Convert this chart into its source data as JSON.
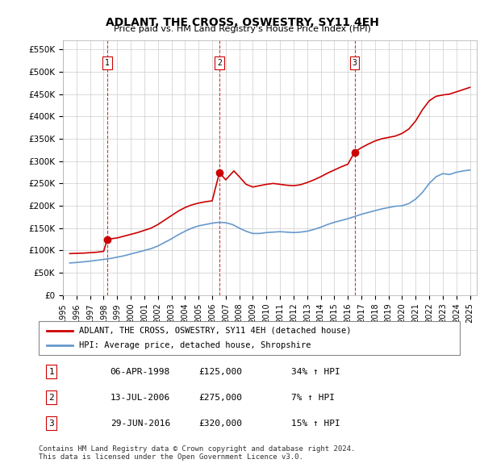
{
  "title": "ADLANT, THE CROSS, OSWESTRY, SY11 4EH",
  "subtitle": "Price paid vs. HM Land Registry's House Price Index (HPI)",
  "ylabel_ticks": [
    "£0",
    "£50K",
    "£100K",
    "£150K",
    "£200K",
    "£250K",
    "£300K",
    "£350K",
    "£400K",
    "£450K",
    "£500K",
    "£550K"
  ],
  "ytick_values": [
    0,
    50000,
    100000,
    150000,
    200000,
    250000,
    300000,
    350000,
    400000,
    450000,
    500000,
    550000
  ],
  "ylim": [
    0,
    570000
  ],
  "xlim_start": 1995.5,
  "xlim_end": 2025.5,
  "sale_dates": [
    1998.27,
    2006.54,
    2016.5
  ],
  "sale_prices": [
    125000,
    275000,
    320000
  ],
  "sale_labels": [
    "1",
    "2",
    "3"
  ],
  "red_line_color": "#cc0000",
  "blue_line_color": "#6699cc",
  "vline_color": "#cc0000",
  "grid_color": "#cccccc",
  "background_color": "#ffffff",
  "legend_line1": "ADLANT, THE CROSS, OSWESTRY, SY11 4EH (detached house)",
  "legend_line2": "HPI: Average price, detached house, Shropshire",
  "table_data": [
    [
      "1",
      "06-APR-1998",
      "£125,000",
      "34% ↑ HPI"
    ],
    [
      "2",
      "13-JUL-2006",
      "£275,000",
      "7% ↑ HPI"
    ],
    [
      "3",
      "29-JUN-2016",
      "£320,000",
      "15% ↑ HPI"
    ]
  ],
  "footer_text": "Contains HM Land Registry data © Crown copyright and database right 2024.\nThis data is licensed under the Open Government Licence v3.0.",
  "hpi_x": [
    1995.5,
    1996,
    1996.5,
    1997,
    1997.5,
    1998,
    1998.5,
    1999,
    1999.5,
    2000,
    2000.5,
    2001,
    2001.5,
    2002,
    2002.5,
    2003,
    2003.5,
    2004,
    2004.5,
    2005,
    2005.5,
    2006,
    2006.5,
    2007,
    2007.5,
    2008,
    2008.5,
    2009,
    2009.5,
    2010,
    2010.5,
    2011,
    2011.5,
    2012,
    2012.5,
    2013,
    2013.5,
    2014,
    2014.5,
    2015,
    2015.5,
    2016,
    2016.5,
    2017,
    2017.5,
    2018,
    2018.5,
    2019,
    2019.5,
    2020,
    2020.5,
    2021,
    2021.5,
    2022,
    2022.5,
    2023,
    2023.5,
    2024,
    2024.5,
    2025
  ],
  "hpi_y": [
    72000,
    73000,
    74500,
    76000,
    78000,
    80000,
    82000,
    85000,
    88000,
    92000,
    96000,
    100000,
    104000,
    110000,
    118000,
    126000,
    135000,
    143000,
    150000,
    155000,
    158000,
    161000,
    163000,
    162000,
    158000,
    150000,
    143000,
    138000,
    138000,
    140000,
    141000,
    142000,
    141000,
    140000,
    141000,
    143000,
    147000,
    152000,
    158000,
    163000,
    167000,
    171000,
    176000,
    181000,
    185000,
    189000,
    193000,
    196000,
    199000,
    200000,
    205000,
    215000,
    230000,
    250000,
    265000,
    272000,
    270000,
    275000,
    278000,
    280000
  ],
  "price_line_x": [
    1995.5,
    1996,
    1996.5,
    1997,
    1997.5,
    1998,
    1998.27,
    1998.5,
    1999,
    1999.5,
    2000,
    2000.5,
    2001,
    2001.5,
    2002,
    2002.5,
    2003,
    2003.5,
    2004,
    2004.5,
    2005,
    2005.5,
    2006,
    2006.54,
    2006.8,
    2007,
    2007.3,
    2007.6,
    2008,
    2008.5,
    2009,
    2009.5,
    2010,
    2010.5,
    2011,
    2011.5,
    2012,
    2012.5,
    2013,
    2013.5,
    2014,
    2014.5,
    2015,
    2015.5,
    2016,
    2016.5,
    2017,
    2017.5,
    2018,
    2018.5,
    2019,
    2019.5,
    2020,
    2020.5,
    2021,
    2021.5,
    2022,
    2022.5,
    2023,
    2023.5,
    2024,
    2024.5,
    2025
  ],
  "price_line_y": [
    93000,
    93500,
    94000,
    95000,
    96000,
    98000,
    125000,
    126000,
    128000,
    132000,
    136000,
    140000,
    145000,
    150000,
    158000,
    168000,
    178000,
    188000,
    196000,
    202000,
    206000,
    209000,
    211000,
    275000,
    265000,
    258000,
    268000,
    278000,
    265000,
    248000,
    242000,
    245000,
    248000,
    250000,
    248000,
    246000,
    245000,
    247000,
    252000,
    258000,
    265000,
    273000,
    280000,
    287000,
    293000,
    320000,
    330000,
    338000,
    345000,
    350000,
    353000,
    356000,
    362000,
    372000,
    390000,
    415000,
    435000,
    445000,
    448000,
    450000,
    455000,
    460000,
    465000
  ]
}
